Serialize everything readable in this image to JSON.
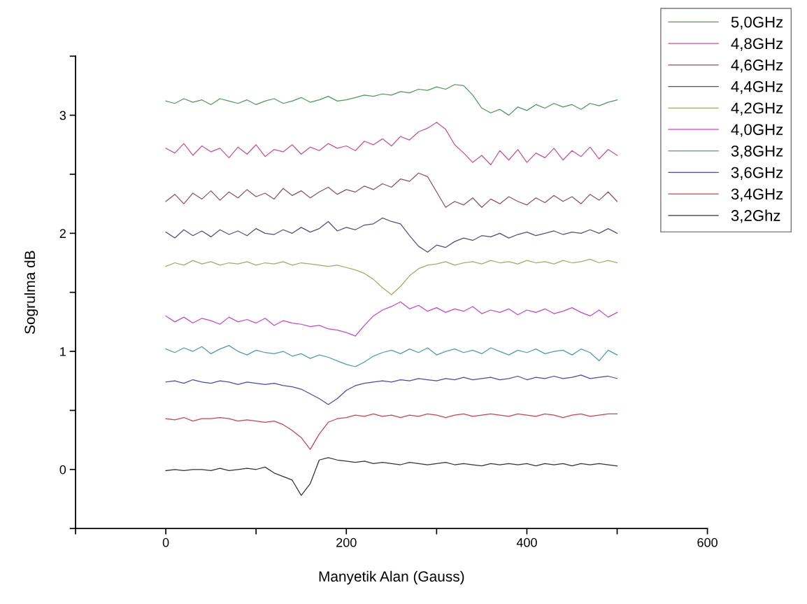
{
  "chart_data": {
    "type": "line",
    "xlabel": "Manyetik Alan (Gauss)",
    "ylabel": "Sogrulma dB",
    "x": [
      0,
      10,
      20,
      30,
      40,
      50,
      60,
      70,
      80,
      90,
      100,
      110,
      120,
      130,
      140,
      150,
      160,
      170,
      180,
      190,
      200,
      210,
      220,
      230,
      240,
      250,
      260,
      270,
      280,
      290,
      300,
      310,
      320,
      330,
      340,
      350,
      360,
      370,
      380,
      390,
      400,
      410,
      420,
      430,
      440,
      450,
      460,
      470,
      480,
      490,
      500
    ],
    "xlim": [
      -100,
      600
    ],
    "xticks": [
      {
        "value": -100,
        "label": null
      },
      0,
      {
        "value": 100,
        "label": null
      },
      200,
      {
        "value": 300,
        "label": null
      },
      400,
      {
        "value": 500,
        "label": null
      },
      600
    ],
    "ylim": [
      -0.5,
      3.5
    ],
    "yticks": [
      {
        "value": -0.5,
        "label": null
      },
      0,
      {
        "value": 0.5,
        "label": null
      },
      1,
      {
        "value": 1.5,
        "label": null
      },
      2,
      {
        "value": 2.5,
        "label": null
      },
      3,
      {
        "value": 3.5,
        "label": null
      }
    ],
    "grid": false,
    "legend": "top right",
    "marker": "none",
    "line_style": "solid",
    "series": [
      {
        "name": "5,0GHz",
        "color": "#4a9a5a",
        "values": [
          3.12,
          3.1,
          3.14,
          3.11,
          3.13,
          3.09,
          3.14,
          3.12,
          3.1,
          3.13,
          3.09,
          3.12,
          3.14,
          3.1,
          3.12,
          3.15,
          3.11,
          3.13,
          3.16,
          3.12,
          3.13,
          3.15,
          3.17,
          3.16,
          3.18,
          3.17,
          3.2,
          3.19,
          3.22,
          3.21,
          3.24,
          3.22,
          3.26,
          3.25,
          3.17,
          3.06,
          3.02,
          3.05,
          3.0,
          3.07,
          3.04,
          3.09,
          3.06,
          3.1,
          3.07,
          3.09,
          3.05,
          3.1,
          3.08,
          3.11,
          3.13
        ]
      },
      {
        "name": "4,8GHz",
        "color": "#d0508a",
        "values": [
          2.72,
          2.68,
          2.76,
          2.66,
          2.74,
          2.69,
          2.72,
          2.64,
          2.73,
          2.67,
          2.75,
          2.65,
          2.71,
          2.69,
          2.75,
          2.67,
          2.73,
          2.7,
          2.76,
          2.72,
          2.74,
          2.7,
          2.78,
          2.75,
          2.8,
          2.74,
          2.82,
          2.79,
          2.86,
          2.89,
          2.94,
          2.88,
          2.75,
          2.68,
          2.6,
          2.66,
          2.58,
          2.7,
          2.62,
          2.71,
          2.6,
          2.68,
          2.64,
          2.72,
          2.62,
          2.7,
          2.65,
          2.73,
          2.63,
          2.71,
          2.66
        ]
      },
      {
        "name": "4,6GHz",
        "color": "#905060",
        "values": [
          2.27,
          2.33,
          2.25,
          2.34,
          2.29,
          2.36,
          2.28,
          2.35,
          2.3,
          2.37,
          2.31,
          2.34,
          2.29,
          2.38,
          2.32,
          2.36,
          2.3,
          2.35,
          2.39,
          2.33,
          2.37,
          2.35,
          2.4,
          2.37,
          2.42,
          2.39,
          2.46,
          2.44,
          2.51,
          2.48,
          2.35,
          2.22,
          2.27,
          2.24,
          2.3,
          2.22,
          2.29,
          2.25,
          2.31,
          2.27,
          2.24,
          2.3,
          2.26,
          2.32,
          2.27,
          2.31,
          2.25,
          2.33,
          2.28,
          2.35,
          2.27
        ]
      },
      {
        "name": "4,4GHz",
        "color": "#505080",
        "values": [
          2.01,
          1.96,
          2.03,
          1.98,
          2.02,
          1.97,
          2.03,
          1.99,
          2.02,
          1.98,
          2.04,
          2.0,
          1.99,
          2.03,
          2.0,
          2.05,
          2.01,
          2.04,
          2.1,
          2.02,
          2.05,
          2.03,
          2.07,
          2.08,
          2.13,
          2.1,
          2.08,
          1.98,
          1.89,
          1.84,
          1.9,
          1.88,
          1.93,
          1.96,
          1.94,
          1.98,
          1.97,
          2.0,
          1.96,
          1.99,
          2.01,
          1.98,
          2.0,
          2.02,
          1.99,
          2.01,
          2.0,
          2.03,
          2.0,
          2.04,
          2.0
        ]
      },
      {
        "name": "4,2GHz",
        "color": "#a8a868",
        "values": [
          1.72,
          1.75,
          1.73,
          1.77,
          1.74,
          1.76,
          1.73,
          1.75,
          1.74,
          1.76,
          1.73,
          1.75,
          1.74,
          1.76,
          1.73,
          1.75,
          1.74,
          1.73,
          1.72,
          1.73,
          1.71,
          1.69,
          1.66,
          1.61,
          1.54,
          1.48,
          1.55,
          1.64,
          1.7,
          1.73,
          1.74,
          1.76,
          1.73,
          1.75,
          1.76,
          1.74,
          1.77,
          1.75,
          1.76,
          1.74,
          1.77,
          1.75,
          1.76,
          1.74,
          1.77,
          1.75,
          1.76,
          1.78,
          1.75,
          1.77,
          1.75
        ]
      },
      {
        "name": "4,0GHz",
        "color": "#cc44cc",
        "values": [
          1.3,
          1.25,
          1.29,
          1.24,
          1.28,
          1.26,
          1.23,
          1.29,
          1.25,
          1.27,
          1.24,
          1.28,
          1.22,
          1.26,
          1.24,
          1.23,
          1.21,
          1.22,
          1.19,
          1.18,
          1.16,
          1.13,
          1.22,
          1.3,
          1.35,
          1.38,
          1.42,
          1.36,
          1.39,
          1.34,
          1.37,
          1.33,
          1.36,
          1.34,
          1.38,
          1.32,
          1.35,
          1.33,
          1.36,
          1.31,
          1.35,
          1.33,
          1.36,
          1.32,
          1.34,
          1.37,
          1.33,
          1.3,
          1.35,
          1.29,
          1.33
        ]
      },
      {
        "name": "3,8GHz",
        "color": "#4aa0a0",
        "values": [
          1.02,
          0.99,
          1.03,
          1.0,
          1.04,
          0.98,
          1.02,
          1.05,
          1.0,
          0.97,
          1.01,
          0.99,
          0.98,
          1.0,
          0.96,
          0.98,
          0.94,
          0.97,
          0.95,
          0.92,
          0.89,
          0.87,
          0.91,
          0.96,
          0.99,
          1.01,
          0.98,
          1.02,
          0.99,
          1.03,
          0.97,
          1.0,
          1.02,
          0.99,
          1.01,
          0.98,
          1.03,
          1.0,
          0.97,
          1.01,
          0.99,
          1.02,
          0.98,
          1.0,
          1.01,
          0.97,
          1.02,
          0.99,
          0.92,
          1.01,
          0.97
        ]
      },
      {
        "name": "3,6GHz",
        "color": "#4848c0",
        "values": [
          0.74,
          0.75,
          0.73,
          0.76,
          0.74,
          0.73,
          0.75,
          0.74,
          0.72,
          0.74,
          0.73,
          0.72,
          0.73,
          0.71,
          0.7,
          0.68,
          0.64,
          0.6,
          0.55,
          0.6,
          0.67,
          0.71,
          0.73,
          0.74,
          0.75,
          0.74,
          0.76,
          0.75,
          0.77,
          0.76,
          0.75,
          0.77,
          0.76,
          0.78,
          0.76,
          0.77,
          0.78,
          0.76,
          0.77,
          0.79,
          0.76,
          0.78,
          0.77,
          0.79,
          0.77,
          0.78,
          0.8,
          0.77,
          0.78,
          0.79,
          0.77
        ]
      },
      {
        "name": "3,4GHz",
        "color": "#d04050",
        "values": [
          0.43,
          0.42,
          0.44,
          0.41,
          0.43,
          0.43,
          0.44,
          0.43,
          0.41,
          0.42,
          0.41,
          0.4,
          0.41,
          0.38,
          0.33,
          0.27,
          0.17,
          0.3,
          0.4,
          0.43,
          0.44,
          0.46,
          0.45,
          0.47,
          0.45,
          0.46,
          0.44,
          0.46,
          0.45,
          0.47,
          0.46,
          0.44,
          0.46,
          0.47,
          0.45,
          0.46,
          0.47,
          0.46,
          0.45,
          0.47,
          0.46,
          0.45,
          0.47,
          0.46,
          0.44,
          0.46,
          0.47,
          0.45,
          0.46,
          0.47,
          0.47
        ]
      },
      {
        "name": "3,2Ghz",
        "color": "#333333",
        "values": [
          -0.01,
          0.0,
          -0.01,
          0.0,
          0.0,
          -0.01,
          0.01,
          -0.01,
          0.0,
          0.01,
          0.0,
          0.02,
          -0.03,
          -0.06,
          -0.09,
          -0.22,
          -0.12,
          0.08,
          0.1,
          0.08,
          0.07,
          0.06,
          0.07,
          0.05,
          0.06,
          0.05,
          0.04,
          0.06,
          0.05,
          0.04,
          0.05,
          0.06,
          0.04,
          0.05,
          0.04,
          0.03,
          0.05,
          0.04,
          0.05,
          0.04,
          0.05,
          0.03,
          0.05,
          0.04,
          0.05,
          0.03,
          0.05,
          0.04,
          0.05,
          0.04,
          0.03
        ]
      }
    ]
  }
}
